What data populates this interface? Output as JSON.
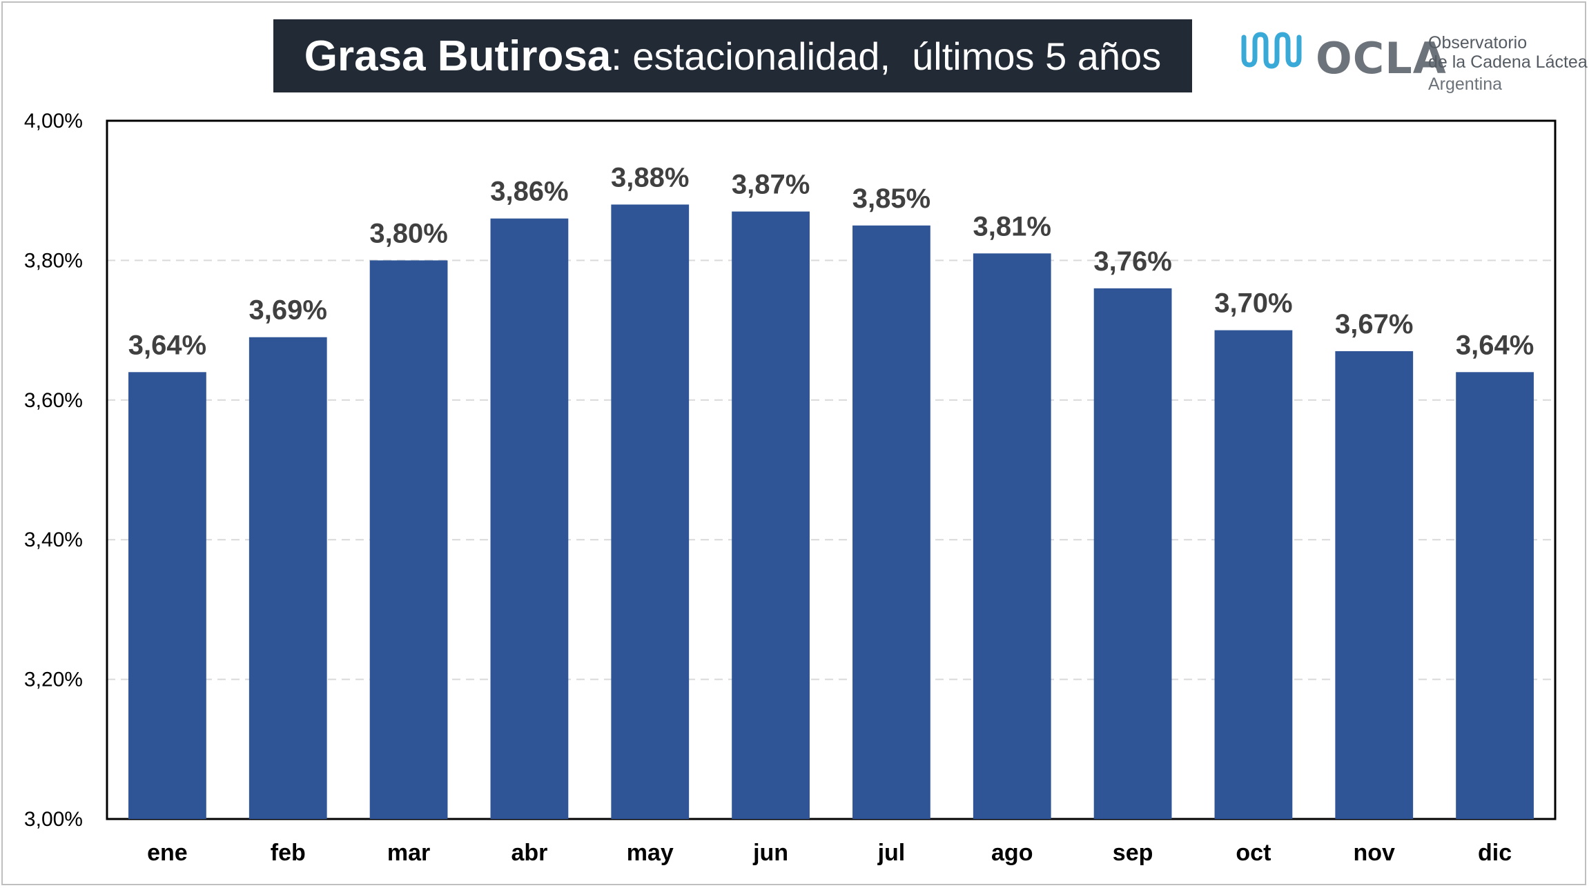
{
  "colors": {
    "bar": "#2f5597",
    "title_bg": "#222a35",
    "grid": "#d9d9d9",
    "logo_teal": "#39a9d8",
    "logo_gray": "#6d737a"
  },
  "header": {
    "title_bold": "Grasa Butirosa",
    "title_rest": ": estacionalidad,  últimos 5 años"
  },
  "logo": {
    "icon": "milk-wave-icon",
    "word": "OCLA",
    "line1": "Observatorio",
    "line2": "de la Cadena Láctea",
    "line3": "Argentina"
  },
  "chart_data": {
    "type": "bar",
    "title": "Grasa Butirosa: estacionalidad,  últimos 5 años",
    "categories": [
      "ene",
      "feb",
      "mar",
      "abr",
      "may",
      "jun",
      "jul",
      "ago",
      "sep",
      "oct",
      "nov",
      "dic"
    ],
    "values": [
      3.64,
      3.69,
      3.8,
      3.86,
      3.88,
      3.87,
      3.85,
      3.81,
      3.76,
      3.7,
      3.67,
      3.64
    ],
    "data_labels": [
      "3,64%",
      "3,69%",
      "3,80%",
      "3,86%",
      "3,88%",
      "3,87%",
      "3,85%",
      "3,81%",
      "3,76%",
      "3,70%",
      "3,67%",
      "3,64%"
    ],
    "yticks": [
      3.0,
      3.2,
      3.4,
      3.6,
      3.8,
      4.0
    ],
    "ytick_labels": [
      "3,00%",
      "3,20%",
      "3,40%",
      "3,60%",
      "3,80%",
      "4,00%"
    ],
    "ylim": [
      3.0,
      4.0
    ],
    "grid": "horizontal dashed",
    "legend": "none",
    "xlabel": "",
    "ylabel": ""
  }
}
